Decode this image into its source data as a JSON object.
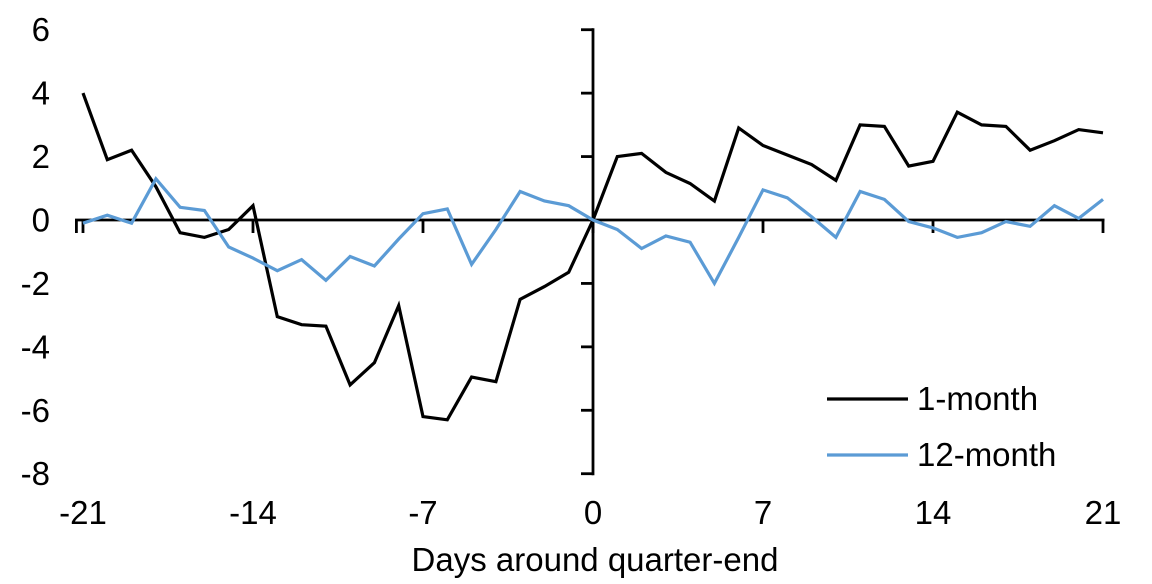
{
  "chart_data": {
    "type": "line",
    "title": "",
    "xlabel": "Days around quarter-end",
    "ylabel": "",
    "xlim": [
      -21,
      21
    ],
    "ylim": [
      -8,
      6
    ],
    "xticks": [
      -21,
      -14,
      -7,
      0,
      7,
      14,
      21
    ],
    "yticks": [
      6,
      4,
      2,
      0,
      -2,
      -4,
      -6,
      -8
    ],
    "grid": false,
    "legend_position": "right-middle",
    "axis_color": "#000000",
    "x": [
      -21,
      -20,
      -19,
      -18,
      -17,
      -16,
      -15,
      -14,
      -13,
      -12,
      -11,
      -10,
      -9,
      -8,
      -7,
      -6,
      -5,
      -4,
      -3,
      -2,
      -1,
      0,
      1,
      2,
      3,
      4,
      5,
      6,
      7,
      8,
      9,
      10,
      11,
      12,
      13,
      14,
      15,
      16,
      17,
      18,
      19,
      20,
      21
    ],
    "series": [
      {
        "name": "1-month",
        "color": "#000000",
        "values": [
          4.0,
          1.9,
          2.2,
          1.05,
          -0.4,
          -0.55,
          -0.3,
          0.45,
          -3.05,
          -3.3,
          -3.35,
          -5.2,
          -4.5,
          -2.7,
          -6.2,
          -6.3,
          -4.95,
          -5.1,
          -2.5,
          -2.1,
          -1.65,
          0.0,
          2.0,
          2.1,
          1.5,
          1.15,
          0.6,
          2.9,
          2.35,
          2.05,
          1.75,
          1.25,
          3.0,
          2.95,
          1.7,
          1.85,
          3.4,
          3.0,
          2.95,
          2.2,
          2.5,
          2.85,
          2.75
        ]
      },
      {
        "name": "12-month",
        "color": "#5B9BD5",
        "values": [
          -0.1,
          0.15,
          -0.1,
          1.3,
          0.4,
          0.3,
          -0.85,
          -1.2,
          -1.6,
          -1.25,
          -1.9,
          -1.15,
          -1.45,
          -0.6,
          0.2,
          0.35,
          -1.4,
          -0.3,
          0.9,
          0.6,
          0.45,
          0.0,
          -0.3,
          -0.9,
          -0.5,
          -0.7,
          -2.0,
          -0.55,
          0.95,
          0.7,
          0.1,
          -0.55,
          0.9,
          0.65,
          -0.05,
          -0.25,
          -0.55,
          -0.4,
          -0.05,
          -0.2,
          0.45,
          0.05,
          0.65
        ]
      }
    ]
  }
}
